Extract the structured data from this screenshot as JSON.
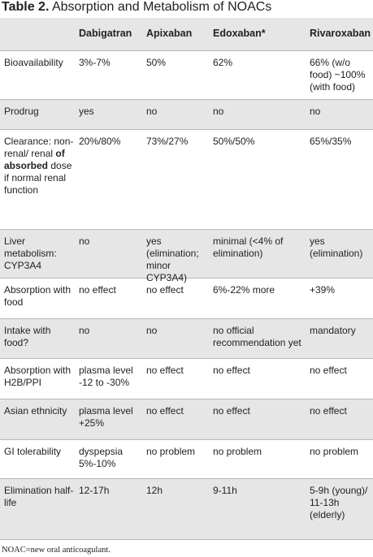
{
  "title": {
    "label": "Table 2.",
    "text": "Absorption and Metabolism of NOACs"
  },
  "table": {
    "columns": [
      "Dabigatran",
      "Apixaban",
      "Edoxaban*",
      "Rivaroxaban"
    ],
    "rows": [
      [
        "Bioavailability",
        "3%-7%",
        "50%",
        "62%",
        "66% (w/o food) ~100% (with food)"
      ],
      [
        "Prodrug",
        "yes",
        "no",
        "no",
        "no"
      ],
      [
        [
          "Clearance: non-renal/ renal ",
          "of absorbed",
          " dose if normal renal function"
        ],
        "20%/80%",
        "73%/27%",
        "50%/50%",
        "65%/35%"
      ],
      [
        "Liver metabolism: CYP3A4",
        "no",
        "yes (elimination; minor CYP3A4)",
        "minimal (<4% of elimination)",
        "yes (elimination)"
      ],
      [
        "Absorption with food",
        "no effect",
        "no effect",
        "6%-22% more",
        "+39%"
      ],
      [
        "Intake with food?",
        "no",
        "no",
        "no official recommendation yet",
        "mandatory"
      ],
      [
        "Absorption with H2B/PPI",
        "plasma level -12 to -30%",
        "no effect",
        "no effect",
        "no effect"
      ],
      [
        "Asian ethnicity",
        "plasma level +25%",
        "no effect",
        "no effect",
        "no effect"
      ],
      [
        "GI tolerability",
        "dyspepsia 5%-10%",
        "no problem",
        "no problem",
        "no problem"
      ],
      [
        "Elimination half-life",
        "12-17h",
        "12h",
        "9-11h",
        "5-9h (young)/ 11-13h (elderly)"
      ]
    ]
  },
  "footnote": "NOAC=new oral anticoagulant."
}
